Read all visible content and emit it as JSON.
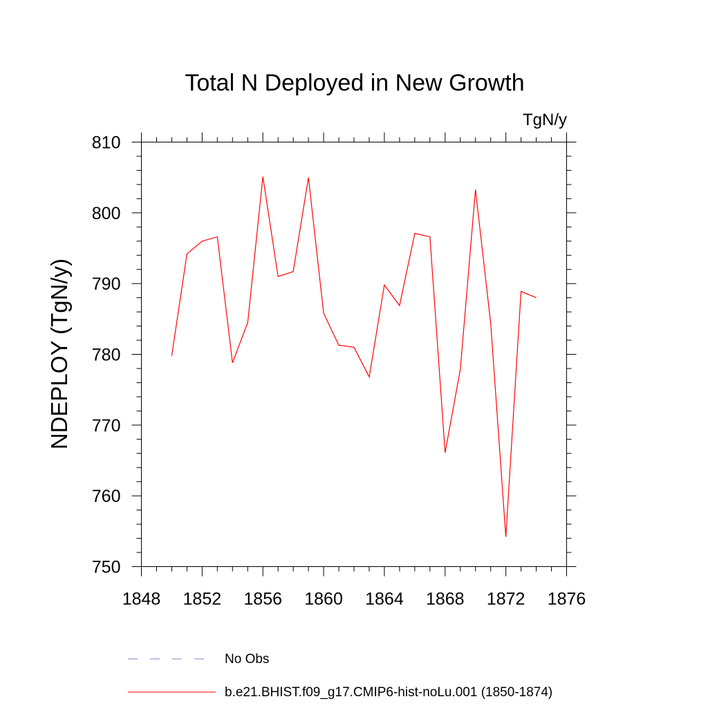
{
  "chart_data": {
    "type": "line",
    "title": "Total N Deployed in New Growth",
    "units": "TgN/y",
    "ylabel": "NDEPLOY  (TgN/y)",
    "xlabel": "",
    "xlim": [
      1848,
      1876
    ],
    "ylim": [
      750,
      810
    ],
    "x_ticks": [
      1848,
      1852,
      1856,
      1860,
      1864,
      1868,
      1872,
      1876
    ],
    "y_ticks": [
      750,
      760,
      770,
      780,
      790,
      800,
      810
    ],
    "grid": false,
    "legend_position": "bottom",
    "series": [
      {
        "name": "b.e21.BHIST.f09_g17.CMIP6-hist-noLu.001 (1850-1874)",
        "color": "#ff0000",
        "style": "solid",
        "x": [
          1850,
          1851,
          1852,
          1853,
          1854,
          1855,
          1856,
          1857,
          1858,
          1859,
          1860,
          1861,
          1862,
          1863,
          1864,
          1865,
          1866,
          1867,
          1868,
          1869,
          1870,
          1871,
          1872,
          1873,
          1874
        ],
        "values": [
          779.8,
          794.2,
          796.0,
          796.6,
          778.8,
          784.5,
          805.1,
          791.0,
          791.7,
          805.0,
          785.8,
          781.3,
          781.0,
          776.8,
          789.8,
          786.9,
          797.1,
          796.6,
          766.1,
          777.9,
          803.3,
          784.4,
          754.2,
          788.9,
          788.0
        ]
      }
    ],
    "legend": [
      {
        "label": "No Obs",
        "color": "#8080c0",
        "style": "dashed"
      },
      {
        "label": "b.e21.BHIST.f09_g17.CMIP6-hist-noLu.001 (1850-1874)",
        "color": "#ff0000",
        "style": "solid"
      }
    ]
  }
}
